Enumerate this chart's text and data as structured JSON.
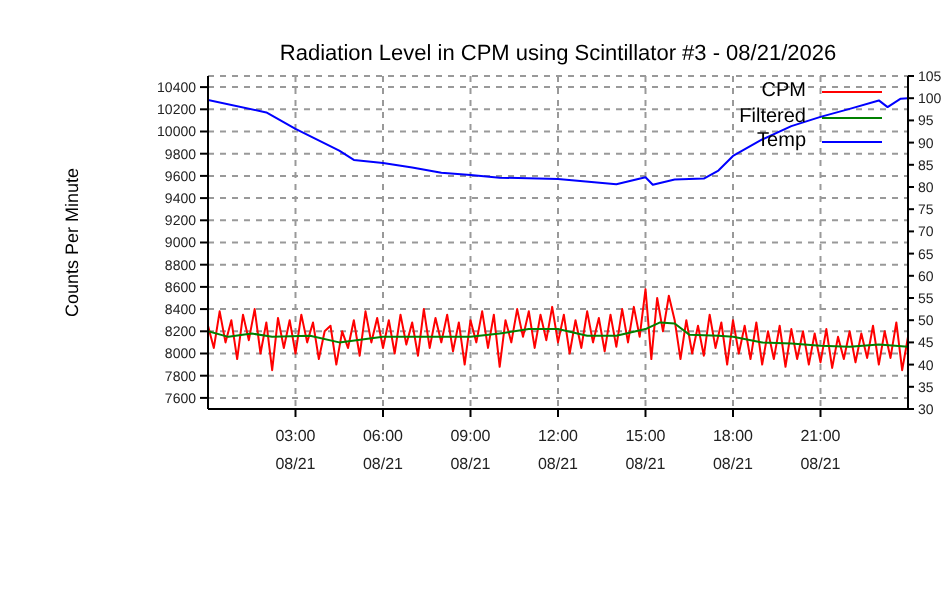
{
  "chart_data": {
    "type": "line",
    "title": "Radiation Level in CPM using Scintillator #3 - 08/21/2026",
    "ylabel": "Counts Per Minute",
    "xlim": [
      "2026-08-21T00:00",
      "2026-08-22T00:00"
    ],
    "xticks": [
      {
        "value": "2026-08-21T03:00",
        "label": "03:00\n08/21"
      },
      {
        "value": "2026-08-21T06:00",
        "label": "06:00\n08/21"
      },
      {
        "value": "2026-08-21T09:00",
        "label": "09:00\n08/21"
      },
      {
        "value": "2026-08-21T12:00",
        "label": "12:00\n08/21"
      },
      {
        "value": "2026-08-21T15:00",
        "label": "15:00\n08/21"
      },
      {
        "value": "2026-08-21T18:00",
        "label": "18:00\n08/21"
      },
      {
        "value": "2026-08-21T21:00",
        "label": "21:00\n08/21"
      }
    ],
    "ylim": [
      7500,
      10500
    ],
    "yticks": [
      7600,
      7800,
      8000,
      8200,
      8400,
      8600,
      8800,
      9000,
      9200,
      9400,
      9600,
      9800,
      10000,
      10200,
      10400
    ],
    "y2lim": [
      30,
      105
    ],
    "y2ticks": [
      30,
      35,
      40,
      45,
      50,
      55,
      60,
      65,
      70,
      75,
      80,
      85,
      90,
      95,
      100,
      105
    ],
    "grid": true,
    "legend": "top right",
    "line_style": "solid",
    "marker": "none",
    "series": [
      {
        "name": "CPM",
        "color": "#ff0000",
        "x": [
          "2026-08-21T00:00",
          "2026-08-21T00:12",
          "2026-08-21T00:24",
          "2026-08-21T00:36",
          "2026-08-21T00:48",
          "2026-08-21T01:00",
          "2026-08-21T01:12",
          "2026-08-21T01:24",
          "2026-08-21T01:36",
          "2026-08-21T01:48",
          "2026-08-21T02:00",
          "2026-08-21T02:12",
          "2026-08-21T02:24",
          "2026-08-21T02:36",
          "2026-08-21T02:48",
          "2026-08-21T03:00",
          "2026-08-21T03:12",
          "2026-08-21T03:24",
          "2026-08-21T03:36",
          "2026-08-21T03:48",
          "2026-08-21T04:00",
          "2026-08-21T04:12",
          "2026-08-21T04:24",
          "2026-08-21T04:36",
          "2026-08-21T04:48",
          "2026-08-21T05:00",
          "2026-08-21T05:12",
          "2026-08-21T05:24",
          "2026-08-21T05:36",
          "2026-08-21T05:48",
          "2026-08-21T06:00",
          "2026-08-21T06:12",
          "2026-08-21T06:24",
          "2026-08-21T06:36",
          "2026-08-21T06:48",
          "2026-08-21T07:00",
          "2026-08-21T07:12",
          "2026-08-21T07:24",
          "2026-08-21T07:36",
          "2026-08-21T07:48",
          "2026-08-21T08:00",
          "2026-08-21T08:12",
          "2026-08-21T08:24",
          "2026-08-21T08:36",
          "2026-08-21T08:48",
          "2026-08-21T09:00",
          "2026-08-21T09:12",
          "2026-08-21T09:24",
          "2026-08-21T09:36",
          "2026-08-21T09:48",
          "2026-08-21T10:00",
          "2026-08-21T10:12",
          "2026-08-21T10:24",
          "2026-08-21T10:36",
          "2026-08-21T10:48",
          "2026-08-21T11:00",
          "2026-08-21T11:12",
          "2026-08-21T11:24",
          "2026-08-21T11:36",
          "2026-08-21T11:48",
          "2026-08-21T12:00",
          "2026-08-21T12:12",
          "2026-08-21T12:24",
          "2026-08-21T12:36",
          "2026-08-21T12:48",
          "2026-08-21T13:00",
          "2026-08-21T13:12",
          "2026-08-21T13:24",
          "2026-08-21T13:36",
          "2026-08-21T13:48",
          "2026-08-21T14:00",
          "2026-08-21T14:12",
          "2026-08-21T14:24",
          "2026-08-21T14:36",
          "2026-08-21T14:48",
          "2026-08-21T15:00",
          "2026-08-21T15:12",
          "2026-08-21T15:24",
          "2026-08-21T15:36",
          "2026-08-21T15:48",
          "2026-08-21T16:00",
          "2026-08-21T16:12",
          "2026-08-21T16:24",
          "2026-08-21T16:36",
          "2026-08-21T16:48",
          "2026-08-21T17:00",
          "2026-08-21T17:12",
          "2026-08-21T17:24",
          "2026-08-21T17:36",
          "2026-08-21T17:48",
          "2026-08-21T18:00",
          "2026-08-21T18:12",
          "2026-08-21T18:24",
          "2026-08-21T18:36",
          "2026-08-21T18:48",
          "2026-08-21T19:00",
          "2026-08-21T19:12",
          "2026-08-21T19:24",
          "2026-08-21T19:36",
          "2026-08-21T19:48",
          "2026-08-21T20:00",
          "2026-08-21T20:12",
          "2026-08-21T20:24",
          "2026-08-21T20:36",
          "2026-08-21T20:48",
          "2026-08-21T21:00",
          "2026-08-21T21:12",
          "2026-08-21T21:24",
          "2026-08-21T21:36",
          "2026-08-21T21:48",
          "2026-08-21T22:00",
          "2026-08-21T22:12",
          "2026-08-21T22:24",
          "2026-08-21T22:36",
          "2026-08-21T22:48",
          "2026-08-21T23:00",
          "2026-08-21T23:12",
          "2026-08-21T23:24",
          "2026-08-21T23:36",
          "2026-08-21T23:48",
          "2026-08-22T00:00"
        ],
        "values": [
          8250,
          8050,
          8380,
          8100,
          8300,
          7950,
          8350,
          8120,
          8400,
          8000,
          8280,
          7850,
          8320,
          8050,
          8300,
          8000,
          8350,
          8100,
          8280,
          7950,
          8200,
          8250,
          7900,
          8200,
          8050,
          8300,
          7980,
          8380,
          8100,
          8320,
          8050,
          8300,
          8000,
          8350,
          8080,
          8280,
          7980,
          8400,
          8050,
          8320,
          8100,
          8350,
          8020,
          8280,
          7900,
          8300,
          8100,
          8380,
          8050,
          8350,
          7880,
          8300,
          8100,
          8400,
          8150,
          8380,
          8050,
          8350,
          8120,
          8420,
          8100,
          8350,
          8000,
          8300,
          8050,
          8380,
          8100,
          8320,
          8020,
          8350,
          8060,
          8400,
          8100,
          8420,
          8150,
          8580,
          7950,
          8500,
          8200,
          8520,
          8300,
          7950,
          8300,
          8000,
          8250,
          7980,
          8350,
          8050,
          8280,
          7900,
          8300,
          8000,
          8250,
          7950,
          8280,
          7900,
          8200,
          7950,
          8250,
          7880,
          8220,
          7950,
          8200,
          7900,
          8180,
          7920,
          8220,
          7870,
          8150,
          7950,
          8200,
          7920,
          8180,
          7960,
          8250,
          7900,
          8200,
          7960,
          8280,
          7850,
          8150
        ]
      },
      {
        "name": "Filtered",
        "color": "#008000",
        "x": [
          "2026-08-21T00:00",
          "2026-08-21T00:42",
          "2026-08-21T01:30",
          "2026-08-21T02:12",
          "2026-08-21T03:30",
          "2026-08-21T04:30",
          "2026-08-21T06:00",
          "2026-08-21T09:00",
          "2026-08-21T10:00",
          "2026-08-21T11:00",
          "2026-08-21T12:00",
          "2026-08-21T13:00",
          "2026-08-21T14:00",
          "2026-08-21T15:00",
          "2026-08-21T15:30",
          "2026-08-21T16:00",
          "2026-08-21T16:30",
          "2026-08-21T17:30",
          "2026-08-21T18:00",
          "2026-08-21T19:00",
          "2026-08-21T20:00",
          "2026-08-21T21:00",
          "2026-08-21T22:00",
          "2026-08-21T23:00",
          "2026-08-22T00:00"
        ],
        "values": [
          8200,
          8150,
          8180,
          8150,
          8160,
          8100,
          8150,
          8150,
          8180,
          8220,
          8220,
          8160,
          8160,
          8220,
          8280,
          8270,
          8170,
          8160,
          8150,
          8100,
          8090,
          8070,
          8060,
          8080,
          8060
        ]
      },
      {
        "name": "Temp",
        "color": "#0000ff",
        "axis": "y2",
        "x": [
          "2026-08-21T00:00",
          "2026-08-21T02:00",
          "2026-08-21T03:00",
          "2026-08-21T04:30",
          "2026-08-21T05:00",
          "2026-08-21T06:00",
          "2026-08-21T07:00",
          "2026-08-21T08:00",
          "2026-08-21T09:00",
          "2026-08-21T10:00",
          "2026-08-21T12:00",
          "2026-08-21T14:00",
          "2026-08-21T15:00",
          "2026-08-21T15:15",
          "2026-08-21T16:00",
          "2026-08-21T17:00",
          "2026-08-21T17:30",
          "2026-08-21T18:00",
          "2026-08-21T19:00",
          "2026-08-21T20:00",
          "2026-08-21T21:00",
          "2026-08-21T22:00",
          "2026-08-21T23:00",
          "2026-08-21T23:18",
          "2026-08-21T23:45",
          "2026-08-22T00:00"
        ],
        "values": [
          99.6,
          96.8,
          93.1,
          88.2,
          86.1,
          85.4,
          84.4,
          83.2,
          82.7,
          82.1,
          81.8,
          80.6,
          82.2,
          80.5,
          81.7,
          81.9,
          83.7,
          87,
          90.7,
          93.7,
          95.8,
          97.6,
          99.5,
          98,
          99.9,
          100
        ]
      }
    ]
  }
}
